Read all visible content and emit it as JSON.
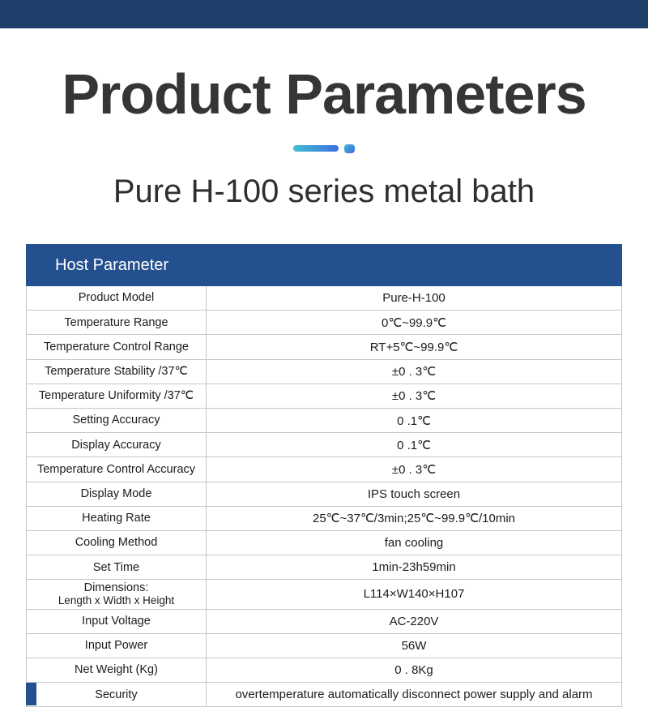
{
  "page": {
    "title": "Product Parameters",
    "subtitle": "Pure H-100 series metal bath"
  },
  "colors": {
    "top_bar": "#20406c",
    "header_bg": "#24508f",
    "divider_teal": "#41c0d2",
    "divider_blue": "#3e6ee2",
    "table_border": "#c6c6c6",
    "title_text": "#353535"
  },
  "table": {
    "header": "Host Parameter",
    "rows": [
      {
        "label": "Product Model",
        "value": "Pure-H-100"
      },
      {
        "label": "Temperature  Range",
        "value": "0℃~99.9℃"
      },
      {
        "label": "Temperature Control Range",
        "value": "RT+5℃~99.9℃"
      },
      {
        "label": "Temperature Stability /37℃",
        "value": "±0 . 3℃"
      },
      {
        "label": "Temperature Uniformity /37℃",
        "value": "±0 . 3℃"
      },
      {
        "label": "Setting Accuracy",
        "value": "0 .1℃"
      },
      {
        "label": "Display Accuracy",
        "value": "0 .1℃"
      },
      {
        "label": "Temperature Control Accuracy",
        "value": "±0 . 3℃"
      },
      {
        "label": "Display Mode",
        "value": "IPS touch screen"
      },
      {
        "label": "Heating Rate",
        "value": "25℃~37℃/3min;25℃~99.9℃/10min"
      },
      {
        "label": "Cooling Method",
        "value": "fan cooling"
      },
      {
        "label": "Set Time",
        "value": "1min-23h59min"
      },
      {
        "label": "Dimensions:",
        "label2": "Length x Width x Height",
        "value": "L114×W140×H107"
      },
      {
        "label": "Input Voltage",
        "value": "AC-220V"
      },
      {
        "label": "Input Power",
        "value": "56W"
      },
      {
        "label": "Net Weight (Kg)",
        "value": "0 . 8Kg"
      },
      {
        "label": "Security",
        "value": "overtemperature automatically disconnect power supply and alarm"
      }
    ]
  }
}
